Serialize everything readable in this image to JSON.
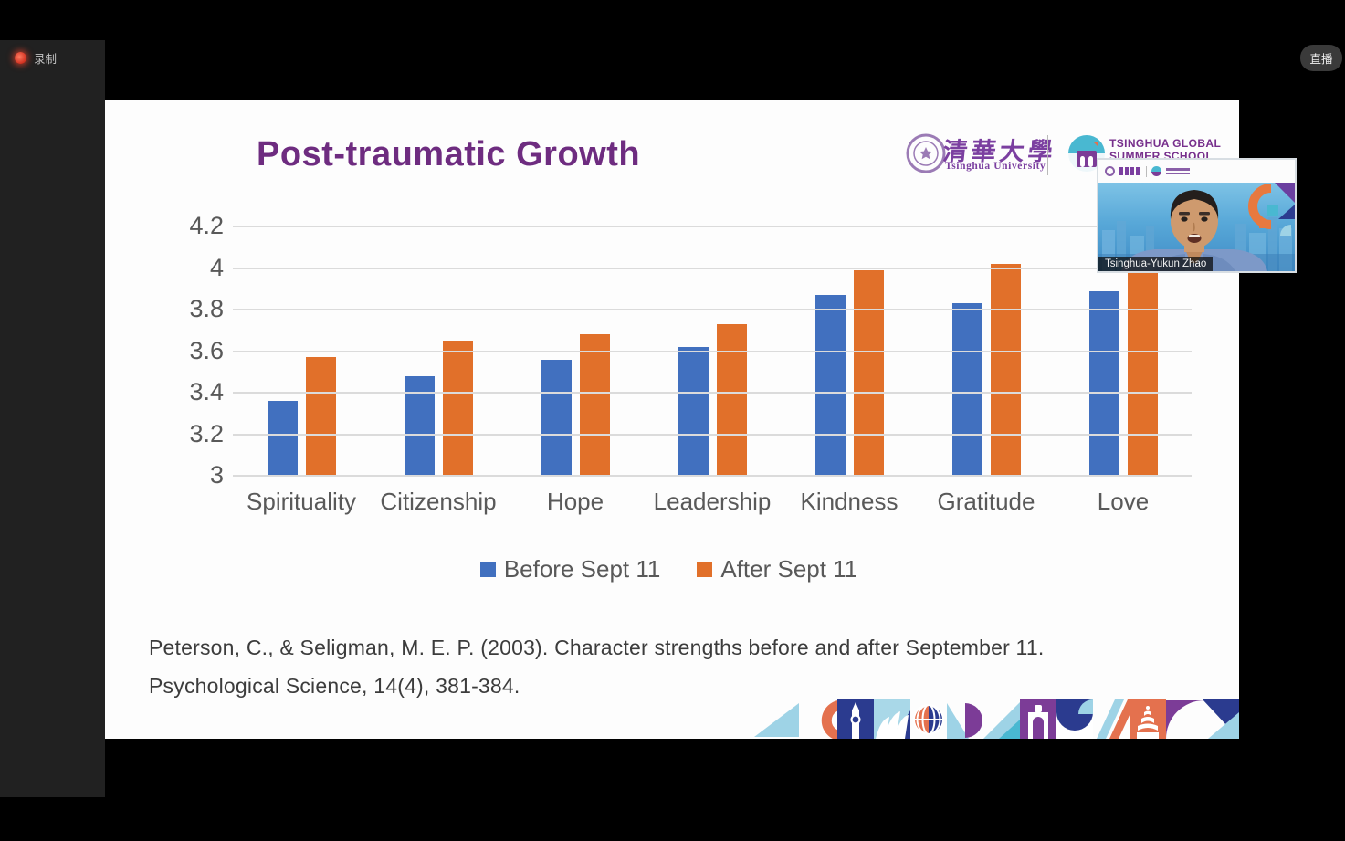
{
  "app": {
    "record_label": "录制",
    "live_label": "直播"
  },
  "participant": {
    "name": "Tsinghua-Yukun Zhao"
  },
  "slide": {
    "title": "Post-traumatic Growth",
    "logos": {
      "university_cn": "清華大學",
      "university_en": "Tsinghua University",
      "summer_line1": "TSINGHUA GLOBAL",
      "summer_line2": "SUMMER SCHOOL"
    },
    "citation_line1": "Peterson, C., & Seligman, M. E. P. (2003). Character strengths before and after September 11.",
    "citation_line2": "Psychological Science, 14(4), 381-384."
  },
  "chart_data": {
    "type": "bar",
    "title": "Post-traumatic Growth",
    "categories": [
      "Spirituality",
      "Citizenship",
      "Hope",
      "Leadership",
      "Kindness",
      "Gratitude",
      "Love"
    ],
    "series": [
      {
        "name": "Before Sept 11",
        "color": "#4170bf",
        "values": [
          3.36,
          3.48,
          3.56,
          3.62,
          3.87,
          3.83,
          3.89
        ]
      },
      {
        "name": "After Sept 11",
        "color": "#e1702a",
        "values": [
          3.57,
          3.65,
          3.68,
          3.73,
          3.99,
          4.02,
          4.05
        ]
      }
    ],
    "xlabel": "",
    "ylabel": "",
    "ylim": [
      3,
      4.2
    ],
    "ytick_labels": [
      "4.2",
      "4",
      "3.8",
      "3.6",
      "3.4",
      "3.2",
      "3"
    ],
    "grid": true,
    "legend_position": "bottom"
  },
  "colors": {
    "title_purple": "#6e2c80",
    "logo_purple": "#7b3fa0",
    "axis_text": "#595959",
    "record_red": "#d0301f",
    "footer_lightblue": "#9ed3e6",
    "footer_orange": "#e4714e",
    "footer_navy": "#2b3b8f",
    "footer_purple": "#7c3c97"
  }
}
